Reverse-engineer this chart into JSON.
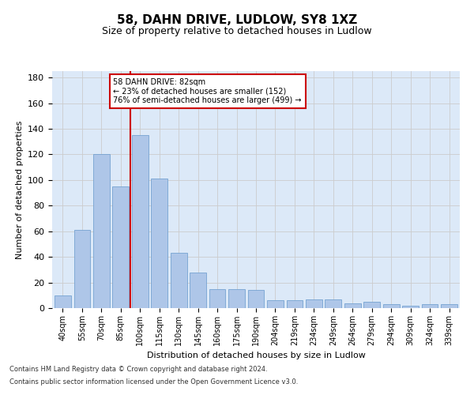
{
  "title_line1": "58, DAHN DRIVE, LUDLOW, SY8 1XZ",
  "title_line2": "Size of property relative to detached houses in Ludlow",
  "xlabel": "Distribution of detached houses by size in Ludlow",
  "ylabel": "Number of detached properties",
  "categories": [
    "40sqm",
    "55sqm",
    "70sqm",
    "85sqm",
    "100sqm",
    "115sqm",
    "130sqm",
    "145sqm",
    "160sqm",
    "175sqm",
    "190sqm",
    "204sqm",
    "219sqm",
    "234sqm",
    "249sqm",
    "264sqm",
    "279sqm",
    "294sqm",
    "309sqm",
    "324sqm",
    "339sqm"
  ],
  "values": [
    10,
    61,
    120,
    95,
    135,
    101,
    43,
    28,
    15,
    15,
    14,
    6,
    6,
    7,
    7,
    4,
    5,
    3,
    2,
    3,
    3
  ],
  "bar_color": "#aec6e8",
  "bar_edge_color": "#6699cc",
  "vline_x": 3.5,
  "vline_color": "#cc0000",
  "annotation_title": "58 DAHN DRIVE: 82sqm",
  "annotation_line1": "← 23% of detached houses are smaller (152)",
  "annotation_line2": "76% of semi-detached houses are larger (499) →",
  "annotation_box_color": "#ffffff",
  "annotation_box_edge": "#cc0000",
  "ylim": [
    0,
    185
  ],
  "yticks": [
    0,
    20,
    40,
    60,
    80,
    100,
    120,
    140,
    160,
    180
  ],
  "grid_color": "#cccccc",
  "bg_color": "#dce9f8",
  "footer_line1": "Contains HM Land Registry data © Crown copyright and database right 2024.",
  "footer_line2": "Contains public sector information licensed under the Open Government Licence v3.0.",
  "title_fontsize": 11,
  "subtitle_fontsize": 9,
  "tick_fontsize": 7,
  "ylabel_fontsize": 8,
  "xlabel_fontsize": 8,
  "ann_fontsize": 7,
  "footer_fontsize": 6
}
